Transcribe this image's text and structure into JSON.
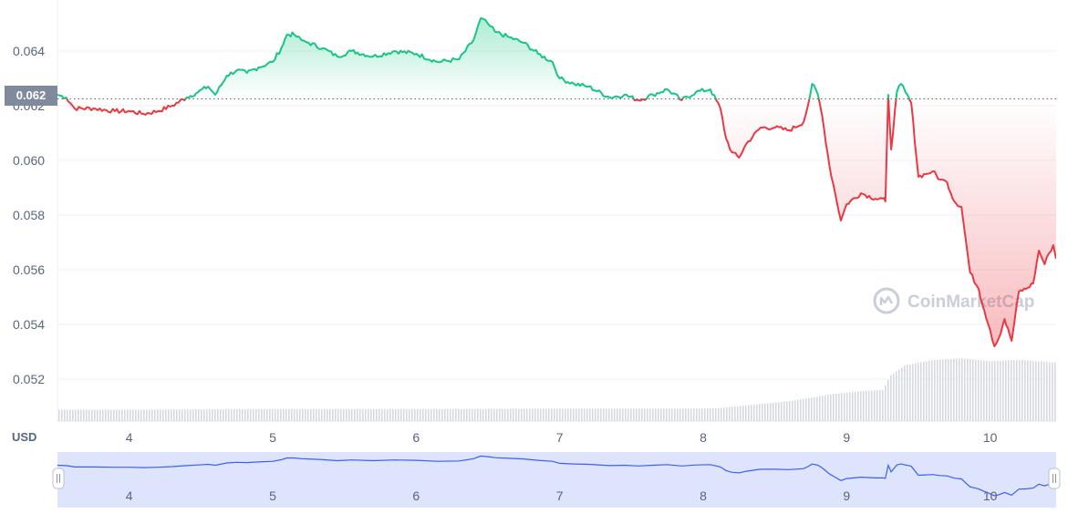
{
  "currency_label": "USD",
  "watermark": "CoinMarketCap",
  "current_price_label": "0.062",
  "colors": {
    "up": "#16c784",
    "down": "#ea3943",
    "baseline": "#58667e",
    "volume": "#d5d9e1",
    "navigator_fill": "#dde4fb",
    "navigator_line": "#3861fb",
    "grid": "#eff2f5",
    "price_tag": "#808a9d"
  },
  "chart_data": {
    "type": "area",
    "xlabel": "",
    "ylabel": "USD",
    "ylim": [
      0.051,
      0.0653
    ],
    "xlim": [
      3.5,
      10.46
    ],
    "yticks": [
      0.052,
      0.054,
      0.056,
      0.058,
      0.06,
      0.062,
      0.064
    ],
    "ytick_labels": [
      "0.052",
      "0.054",
      "0.056",
      "0.058",
      "0.060",
      "0.062",
      "0.064"
    ],
    "xticks": [
      4,
      5,
      6,
      7,
      8,
      9,
      10
    ],
    "xtick_labels": [
      "4",
      "5",
      "6",
      "7",
      "8",
      "9",
      "10"
    ],
    "baseline": 0.06225,
    "grid": true,
    "series": [
      {
        "values_x": [
          3.5,
          3.56,
          3.62,
          3.75,
          3.9,
          4.0,
          4.1,
          4.2,
          4.3,
          4.4,
          4.48,
          4.55,
          4.6,
          4.68,
          4.75,
          4.82,
          4.9,
          5.0,
          5.06,
          5.1,
          5.15,
          5.2,
          5.25,
          5.35,
          5.45,
          5.55,
          5.7,
          5.85,
          6.0,
          6.15,
          6.3,
          6.4,
          6.45,
          6.5,
          6.55,
          6.65,
          6.75,
          6.85,
          6.95,
          7.0,
          7.1,
          7.2,
          7.35,
          7.45,
          7.55,
          7.65,
          7.75,
          7.85,
          7.95,
          8.05,
          8.12,
          8.16,
          8.2,
          8.25,
          8.3,
          8.4,
          8.5,
          8.6,
          8.7,
          8.73,
          8.76,
          8.8,
          8.83,
          8.88,
          8.92,
          8.96,
          9.0,
          9.1,
          9.2,
          9.25,
          9.27,
          9.29,
          9.31,
          9.35,
          9.38,
          9.41,
          9.45,
          9.5,
          9.55,
          9.6,
          9.65,
          9.7,
          9.75,
          9.8,
          9.82,
          9.86,
          9.92,
          9.96,
          10.0,
          10.03,
          10.06,
          10.1,
          10.15,
          10.2,
          10.25,
          10.3,
          10.34,
          10.38,
          10.41,
          10.44,
          10.46
        ],
        "values_y": [
          0.0624,
          0.0623,
          0.0619,
          0.0619,
          0.0618,
          0.0618,
          0.0617,
          0.0618,
          0.062,
          0.0623,
          0.0625,
          0.0627,
          0.0624,
          0.0631,
          0.0633,
          0.0632,
          0.0634,
          0.0636,
          0.0641,
          0.0646,
          0.0646,
          0.0644,
          0.0643,
          0.0641,
          0.0638,
          0.064,
          0.0638,
          0.064,
          0.0639,
          0.0636,
          0.0637,
          0.0644,
          0.0652,
          0.065,
          0.0647,
          0.0645,
          0.0643,
          0.0639,
          0.0636,
          0.063,
          0.0628,
          0.0627,
          0.0623,
          0.0624,
          0.0622,
          0.0624,
          0.0626,
          0.0622,
          0.0625,
          0.0626,
          0.0619,
          0.0608,
          0.0603,
          0.0601,
          0.0606,
          0.0612,
          0.0612,
          0.0611,
          0.0614,
          0.062,
          0.0628,
          0.0624,
          0.0616,
          0.0598,
          0.0588,
          0.0578,
          0.0584,
          0.0588,
          0.0586,
          0.0586,
          0.0585,
          0.0624,
          0.0604,
          0.0625,
          0.0628,
          0.0625,
          0.0621,
          0.0594,
          0.0595,
          0.0596,
          0.0593,
          0.0592,
          0.0585,
          0.0583,
          0.0575,
          0.0559,
          0.0553,
          0.0545,
          0.0538,
          0.0532,
          0.0535,
          0.0542,
          0.0534,
          0.0552,
          0.0553,
          0.0555,
          0.0567,
          0.0562,
          0.0566,
          0.0569,
          0.0564
        ]
      }
    ],
    "volume": {
      "values_x": [
        3.5,
        4.0,
        5.0,
        6.0,
        7.0,
        7.8,
        8.1,
        8.3,
        8.6,
        8.9,
        9.1,
        9.25,
        9.3,
        9.4,
        9.6,
        9.8,
        10.0,
        10.2,
        10.46
      ],
      "values": [
        4.0,
        4.0,
        4.2,
        4.2,
        4.3,
        4.3,
        4.5,
        5.5,
        7.0,
        9.5,
        10.5,
        11.0,
        16.0,
        19.5,
        21.5,
        22.0,
        21.0,
        21.5,
        20.5
      ]
    },
    "navigator": {
      "xlim": [
        3.5,
        10.46
      ],
      "xtick_labels": [
        "4",
        "5",
        "6",
        "7",
        "8",
        "9",
        "10"
      ]
    }
  }
}
